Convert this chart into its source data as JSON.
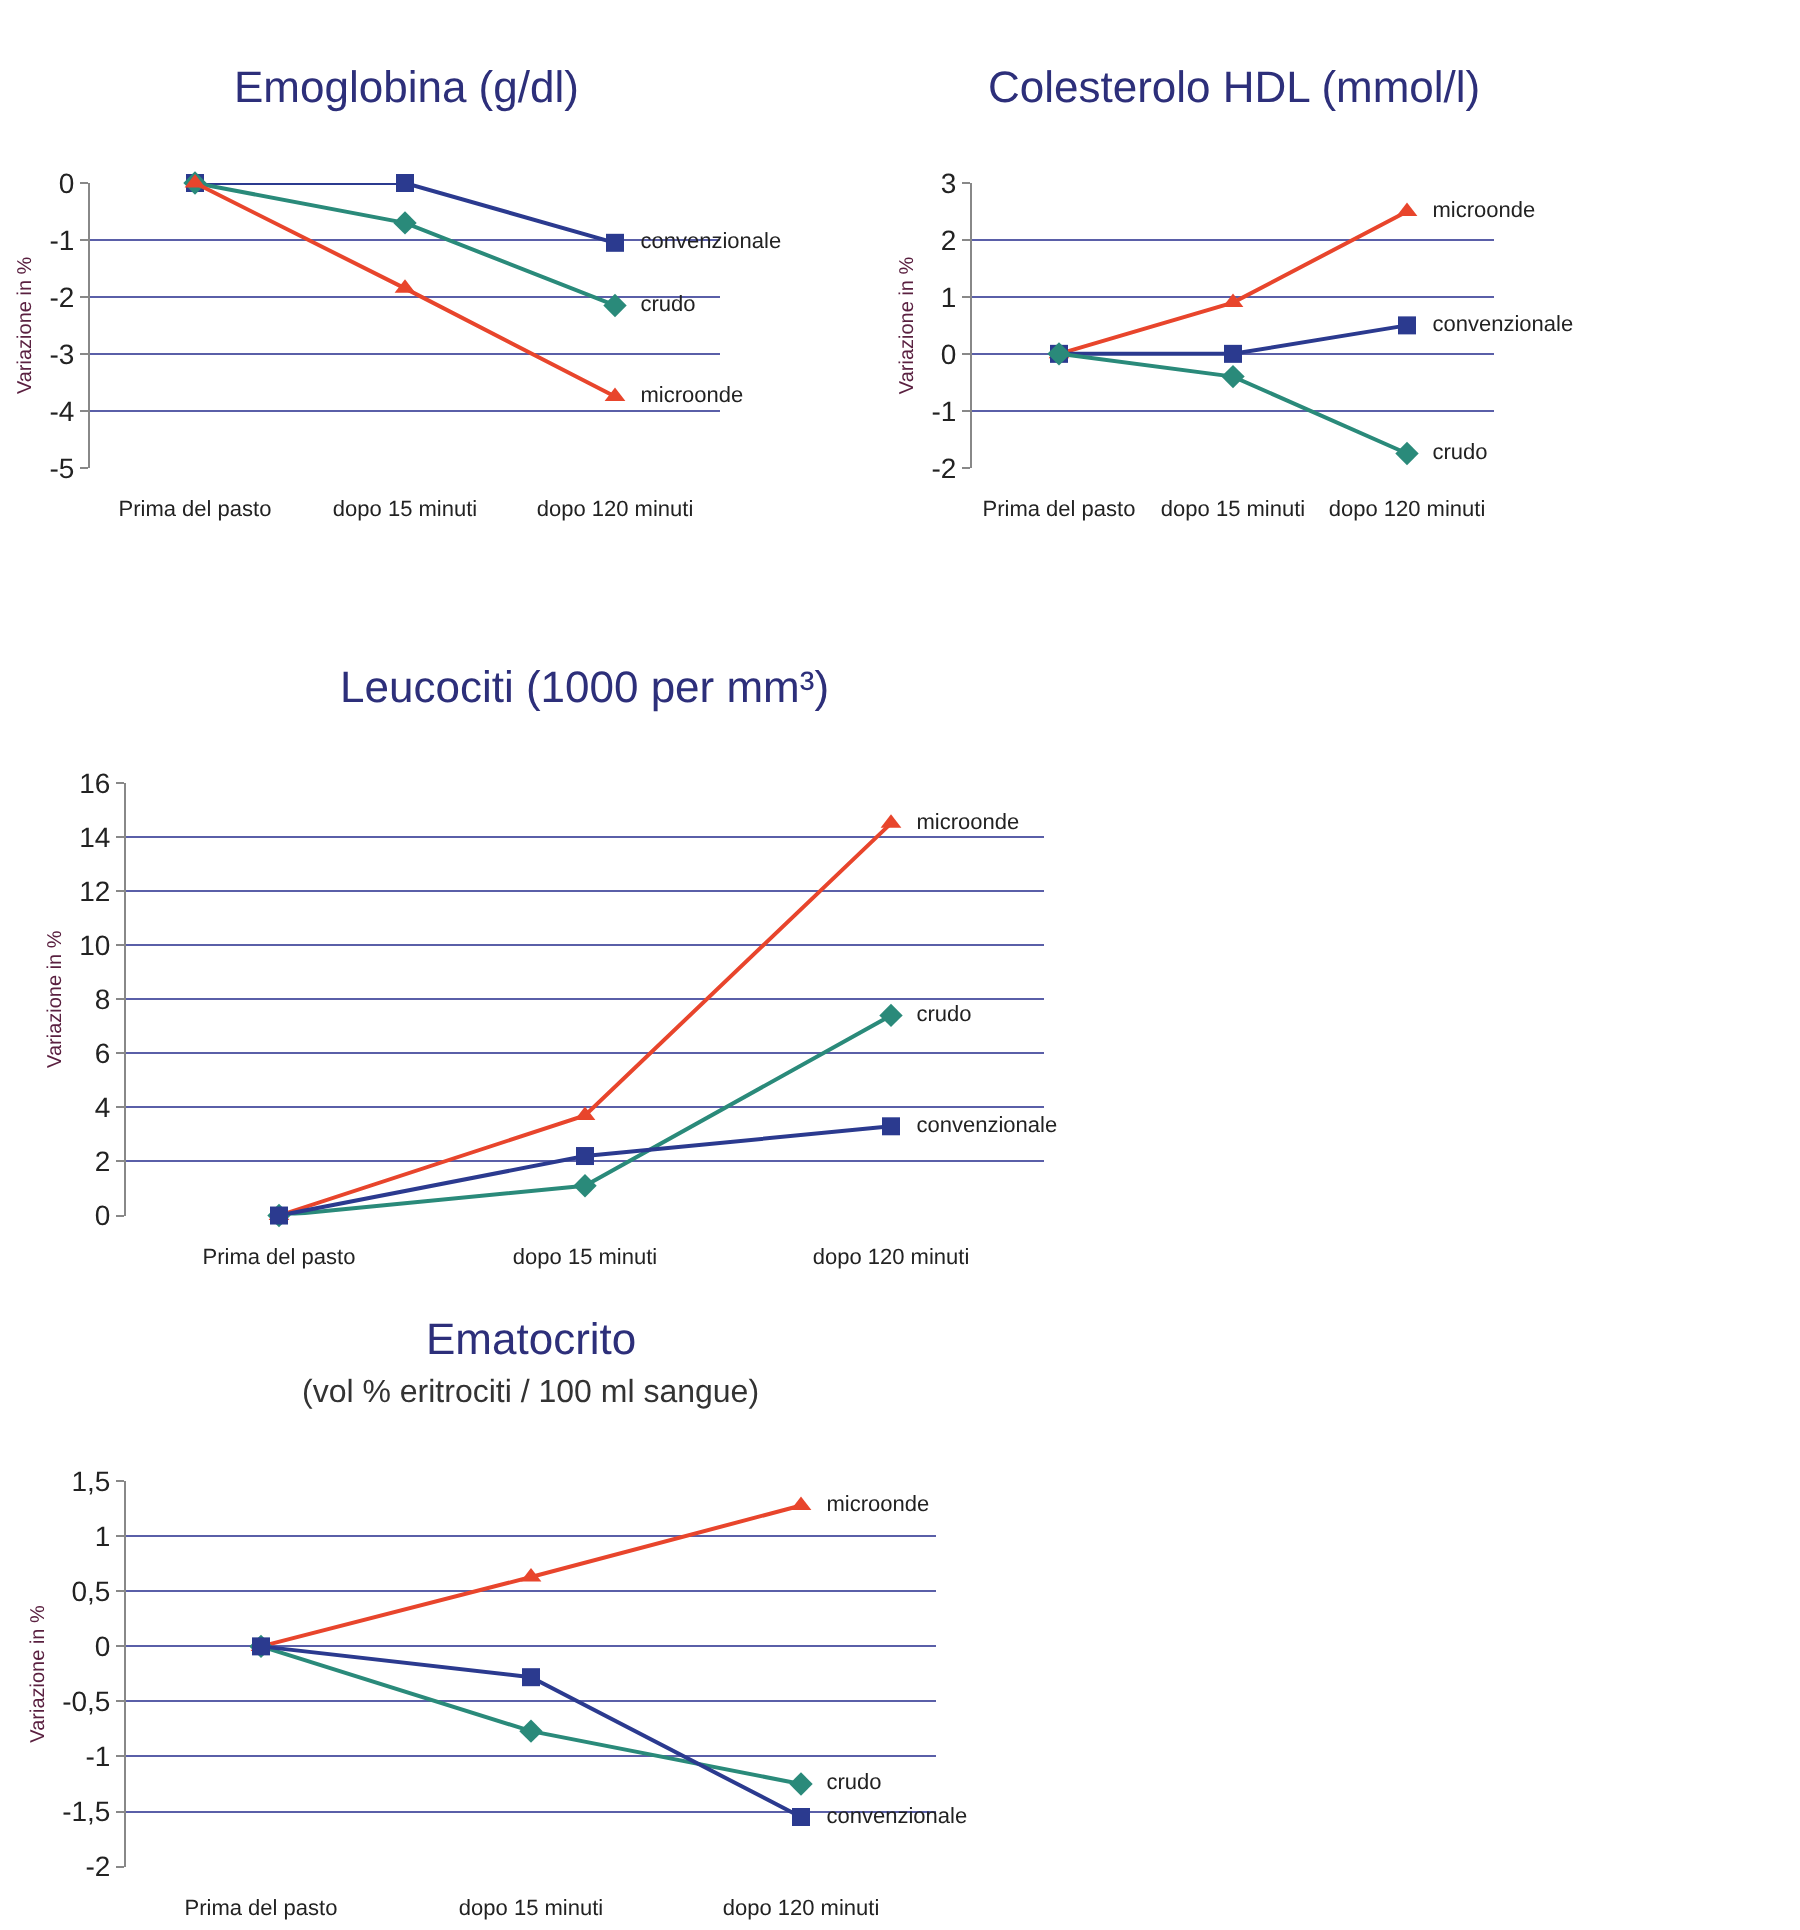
{
  "chart_data": [
    {
      "type": "line",
      "title": "Emoglobina (g/dl)",
      "ylabel": "Variazione in %",
      "categories": [
        "Prima del pasto",
        "dopo 15 minuti",
        "dopo 120 minuti"
      ],
      "ylim": [
        -5,
        0
      ],
      "yticks": [
        -5,
        -4,
        -3,
        -2,
        -1,
        0
      ],
      "grid": "y",
      "series": [
        {
          "name": "convenzionale",
          "color": "#2b3a8f",
          "marker": "square",
          "values": [
            0,
            0,
            -1.05
          ]
        },
        {
          "name": "crudo",
          "color": "#2a8a7a",
          "marker": "diamond",
          "values": [
            0,
            -0.7,
            -2.15
          ]
        },
        {
          "name": "microonde",
          "color": "#e8452c",
          "marker": "triangle",
          "values": [
            0,
            -1.85,
            -3.75
          ]
        }
      ]
    },
    {
      "type": "line",
      "title": "Colesterolo HDL (mmol/l)",
      "ylabel": "Variazione in %",
      "categories": [
        "Prima del pasto",
        "dopo 15 minuti",
        "dopo 120 minuti"
      ],
      "ylim": [
        -2,
        3
      ],
      "yticks": [
        -2,
        -1,
        0,
        1,
        2,
        3
      ],
      "grid": "y",
      "series": [
        {
          "name": "microonde",
          "color": "#e8452c",
          "marker": "triangle",
          "values": [
            0,
            0.9,
            2.5
          ]
        },
        {
          "name": "convenzionale",
          "color": "#2b3a8f",
          "marker": "square",
          "values": [
            0,
            0,
            0.5
          ]
        },
        {
          "name": "crudo",
          "color": "#2a8a7a",
          "marker": "diamond",
          "values": [
            0,
            -0.4,
            -1.75
          ]
        }
      ]
    },
    {
      "type": "line",
      "title": "Leucociti (1000 per mm³)",
      "ylabel": "Variazione in %",
      "categories": [
        "Prima del pasto",
        "dopo 15 minuti",
        "dopo 120 minuti"
      ],
      "ylim": [
        0,
        16
      ],
      "yticks": [
        0,
        2,
        4,
        6,
        8,
        10,
        12,
        14,
        16
      ],
      "grid": "y",
      "series": [
        {
          "name": "microonde",
          "color": "#e8452c",
          "marker": "triangle",
          "values": [
            0,
            3.7,
            14.5
          ]
        },
        {
          "name": "crudo",
          "color": "#2a8a7a",
          "marker": "diamond",
          "values": [
            0,
            1.1,
            7.4
          ]
        },
        {
          "name": "convenzionale",
          "color": "#2b3a8f",
          "marker": "square",
          "values": [
            0,
            2.2,
            3.3
          ]
        }
      ]
    },
    {
      "type": "line",
      "title": "Ematocrito",
      "subtitle": "(vol % eritrociti / 100 ml sangue)",
      "ylabel": "Variazione in %",
      "categories": [
        "Prima del pasto",
        "dopo 15 minuti",
        "dopo 120 minuti"
      ],
      "ylim": [
        -2,
        1.5
      ],
      "yticks": [
        {
          "value": -2,
          "label": "-2"
        },
        {
          "value": -1.5,
          "label": "-1,5"
        },
        {
          "value": -1,
          "label": "-1"
        },
        {
          "value": -0.5,
          "label": "-0,5"
        },
        {
          "value": 0,
          "label": "0"
        },
        {
          "value": 0.5,
          "label": "0,5"
        },
        {
          "value": 1,
          "label": "1"
        },
        {
          "value": 1.5,
          "label": "1,5"
        }
      ],
      "grid": "y",
      "series": [
        {
          "name": "microonde",
          "color": "#e8452c",
          "marker": "triangle",
          "values": [
            0,
            0.63,
            1.28
          ]
        },
        {
          "name": "crudo",
          "color": "#2a8a7a",
          "marker": "diamond",
          "values": [
            0,
            -0.77,
            -1.25
          ]
        },
        {
          "name": "convenzionale",
          "color": "#2b3a8f",
          "marker": "square",
          "values": [
            0,
            -0.28,
            -1.55
          ]
        }
      ]
    }
  ]
}
